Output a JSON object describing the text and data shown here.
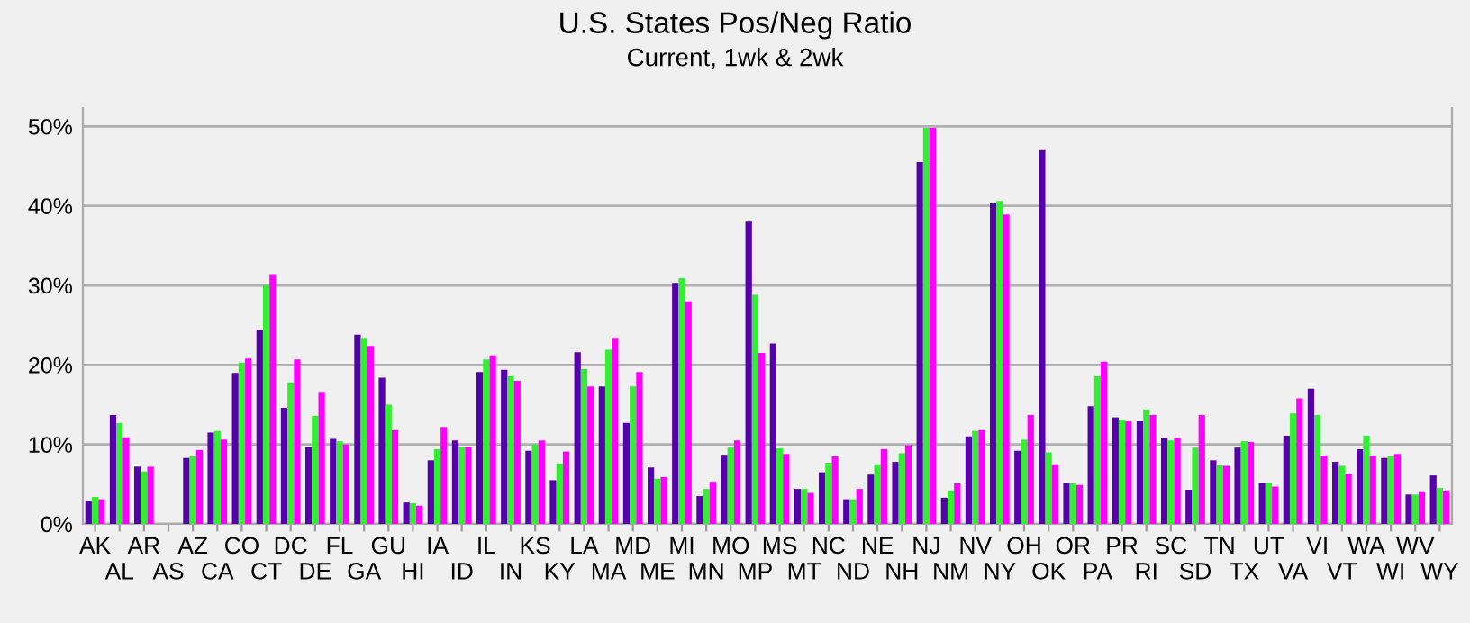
{
  "chart_data": {
    "type": "bar",
    "title": "U.S. States Pos/Neg Ratio",
    "subtitle": "Current, 1wk & 2wk",
    "categories": [
      "AK",
      "AL",
      "AR",
      "AS",
      "AZ",
      "CA",
      "CO",
      "CT",
      "DC",
      "DE",
      "FL",
      "GA",
      "GU",
      "HI",
      "IA",
      "ID",
      "IL",
      "IN",
      "KS",
      "KY",
      "LA",
      "MA",
      "MD",
      "ME",
      "MI",
      "MN",
      "MO",
      "MP",
      "MS",
      "MT",
      "NC",
      "ND",
      "NE",
      "NH",
      "NJ",
      "NM",
      "NV",
      "NY",
      "OH",
      "OK",
      "OR",
      "PA",
      "PR",
      "RI",
      "SC",
      "SD",
      "TN",
      "TX",
      "UT",
      "VA",
      "VI",
      "VT",
      "WA",
      "WI",
      "WV",
      "WY"
    ],
    "series": [
      {
        "color": "#5500aa",
        "values": [
          2.9,
          13.7,
          7.2,
          null,
          8.3,
          11.5,
          19.0,
          24.4,
          14.6,
          9.7,
          10.7,
          23.8,
          18.4,
          2.7,
          8.0,
          10.5,
          19.1,
          19.4,
          9.2,
          5.5,
          21.6,
          17.3,
          12.7,
          7.1,
          30.3,
          3.5,
          8.7,
          38.0,
          22.7,
          4.4,
          6.5,
          3.1,
          6.2,
          7.8,
          45.5,
          3.3,
          11.0,
          40.3,
          9.2,
          47.0,
          5.2,
          14.8,
          13.4,
          12.9,
          10.8,
          4.3,
          8.0,
          9.6,
          5.2,
          11.1,
          17.0,
          7.8,
          9.4,
          8.3,
          3.7,
          6.1
        ]
      },
      {
        "color": "#33ee33",
        "values": [
          3.4,
          12.7,
          6.6,
          null,
          8.5,
          11.7,
          20.3,
          30.0,
          17.8,
          13.6,
          10.4,
          23.4,
          15.0,
          2.6,
          9.4,
          9.7,
          20.7,
          18.6,
          10.0,
          7.6,
          19.5,
          21.9,
          17.3,
          5.7,
          30.9,
          4.4,
          9.6,
          28.8,
          9.5,
          4.4,
          7.7,
          3.1,
          7.5,
          8.9,
          49.8,
          4.2,
          11.7,
          40.6,
          10.6,
          9.0,
          5.1,
          18.6,
          13.1,
          14.4,
          10.5,
          9.6,
          7.4,
          10.4,
          5.2,
          13.9,
          13.7,
          7.3,
          11.1,
          8.5,
          3.7,
          4.5
        ]
      },
      {
        "color": "#ff00ff",
        "values": [
          3.1,
          10.9,
          7.2,
          null,
          9.3,
          10.6,
          20.8,
          31.4,
          20.7,
          16.6,
          10.0,
          22.4,
          11.8,
          2.3,
          12.2,
          9.7,
          21.2,
          18.0,
          10.5,
          9.1,
          17.3,
          23.4,
          19.1,
          5.9,
          28.0,
          5.3,
          10.5,
          21.5,
          8.8,
          3.9,
          8.5,
          4.4,
          9.4,
          9.9,
          49.8,
          5.1,
          11.8,
          38.9,
          13.7,
          7.5,
          4.9,
          20.4,
          12.9,
          13.7,
          10.8,
          13.7,
          7.3,
          10.3,
          4.7,
          15.8,
          8.6,
          6.3,
          8.6,
          8.8,
          4.1,
          4.2
        ]
      }
    ],
    "ylim": [
      0,
      52.3
    ],
    "yticks": [
      {
        "value": 0,
        "label": "0%"
      },
      {
        "value": 10,
        "label": "10%"
      },
      {
        "value": 20,
        "label": "20%"
      },
      {
        "value": 30,
        "label": "30%"
      },
      {
        "value": 40,
        "label": "40%"
      },
      {
        "value": 50,
        "label": "50%"
      }
    ],
    "grid": "y"
  }
}
